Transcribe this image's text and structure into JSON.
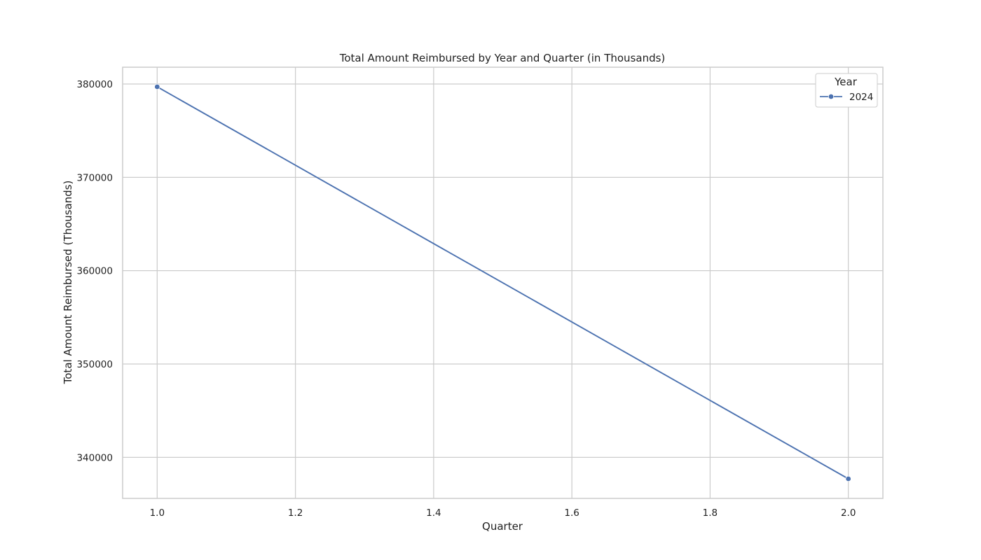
{
  "chart_data": {
    "type": "line",
    "title": "Total Amount Reimbursed by Year and Quarter (in Thousands)",
    "xlabel": "Quarter",
    "ylabel": "Total Amount Reimbursed (Thousands)",
    "x": [
      1.0,
      2.0
    ],
    "series": [
      {
        "name": "2024",
        "values": [
          379700,
          337700
        ]
      }
    ],
    "xlim": [
      0.95,
      2.05
    ],
    "ylim": [
      335600,
      381800
    ],
    "x_ticks": [
      1.0,
      1.2,
      1.4,
      1.6,
      1.8,
      2.0
    ],
    "x_tick_labels": [
      "1.0",
      "1.2",
      "1.4",
      "1.6",
      "1.8",
      "2.0"
    ],
    "y_ticks": [
      340000,
      350000,
      360000,
      370000,
      380000
    ],
    "y_tick_labels": [
      "340000",
      "350000",
      "360000",
      "370000",
      "380000"
    ],
    "legend": {
      "title": "Year",
      "placement": "top-right"
    },
    "grid": true,
    "colors": {
      "line": "#4c72b0",
      "grid": "#cccccc",
      "frame": "#cccccc"
    }
  }
}
